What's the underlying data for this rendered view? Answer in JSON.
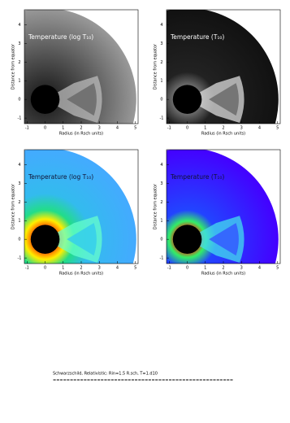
{
  "chart_data": [
    {
      "type": "image",
      "title": "Temperature (log T₁₀)",
      "xlabel": "Radius (in Rsch units)",
      "ylabel": "Distance from equator",
      "xlim": [
        -1.15,
        5.15
      ],
      "ylim": [
        -1.3,
        4.8
      ],
      "xticks": [
        -1,
        0,
        1,
        2,
        3,
        4,
        5
      ],
      "yticks": [
        -1,
        0,
        1,
        2,
        3,
        4
      ]
    },
    {
      "type": "image",
      "title": "Temperature (T₁₀)",
      "xlabel": "Radius (in Rsch units)",
      "ylabel": "Distance from equator",
      "xlim": [
        -1.15,
        5.15
      ],
      "ylim": [
        -1.3,
        4.8
      ],
      "xticks": [
        -1,
        0,
        1,
        2,
        3,
        4,
        5
      ],
      "yticks": [
        -1,
        0,
        1,
        2,
        3,
        4
      ]
    },
    {
      "type": "image",
      "title": "Temperature (log T₁₀)",
      "xlabel": "Radius (in Rsch units)",
      "ylabel": "Distance from equator",
      "xlim": [
        -1.15,
        5.15
      ],
      "ylim": [
        -1.3,
        4.8
      ],
      "xticks": [
        -1,
        0,
        1,
        2,
        3,
        4,
        5
      ],
      "yticks": [
        -1,
        0,
        1,
        2,
        3,
        4
      ]
    },
    {
      "type": "image",
      "title": "Temperature (T₁₀)",
      "xlabel": "Radius (in Rsch units)",
      "ylabel": "Distance from equator",
      "xlim": [
        -1.15,
        5.15
      ],
      "ylim": [
        -1.3,
        4.8
      ],
      "xticks": [
        -1,
        0,
        1,
        2,
        3,
        4,
        5
      ],
      "yticks": [
        -1,
        0,
        1,
        2,
        3,
        4
      ]
    }
  ],
  "caption": "Schwarzschild, Relativistic: Rin=1.5 R.sch, T=1.d10",
  "rule": "====================================================="
}
